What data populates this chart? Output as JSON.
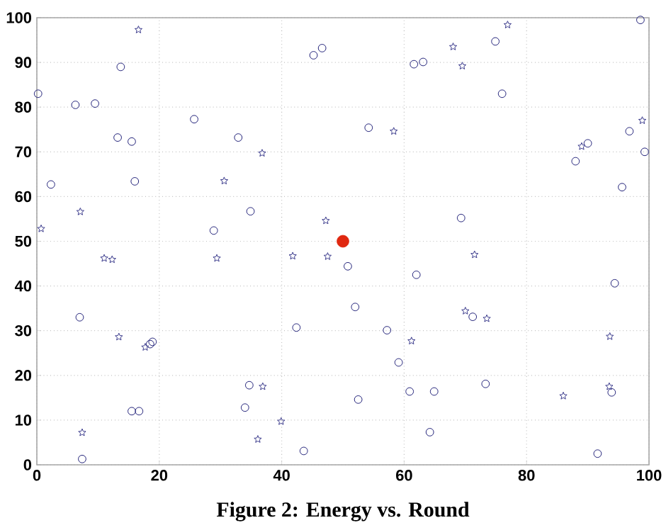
{
  "chart_data": {
    "type": "scatter",
    "title": "Figure 2: Energy vs. Round",
    "xlim": [
      0,
      100
    ],
    "ylim": [
      0,
      100
    ],
    "xticks": [
      0,
      20,
      40,
      60,
      80,
      100
    ],
    "yticks": [
      0,
      10,
      20,
      30,
      40,
      50,
      60,
      70,
      80,
      90,
      100
    ],
    "grid": true,
    "series": [
      {
        "color": "#24247a",
        "marker": "circle",
        "x": [
          0.2,
          2.3,
          6.3,
          9.5,
          13.7,
          13.2,
          15.5,
          16,
          7,
          7.4,
          15.5,
          16.7,
          18.5,
          18.9,
          25.7,
          28.9,
          32.9,
          34.9,
          34,
          34.7,
          42.4,
          43.6,
          45.2,
          46.6,
          61.6,
          63.1,
          74.9,
          76,
          98.6,
          54.2,
          90,
          88,
          96.8,
          99.3,
          95.6,
          69.3,
          50.8,
          62,
          94.4,
          52,
          71.2,
          57.2,
          59.1,
          73.3,
          60.9,
          64.9,
          93.9,
          52.5,
          64.2,
          91.6
        ],
        "values": [
          83,
          62.7,
          80.5,
          80.8,
          89,
          73.2,
          72.3,
          63.4,
          33,
          1.3,
          12,
          12,
          27,
          27.5,
          77.3,
          52.4,
          73.2,
          56.7,
          12.8,
          17.8,
          30.7,
          3.1,
          91.6,
          93.2,
          89.6,
          90.1,
          94.7,
          83,
          99.5,
          75.4,
          71.9,
          67.9,
          74.6,
          70,
          62.1,
          55.2,
          44.4,
          42.5,
          40.6,
          35.3,
          33.1,
          30.1,
          22.9,
          18.1,
          16.4,
          16.4,
          16.2,
          14.6,
          7.3,
          2.5
        ]
      },
      {
        "color": "#3a3a8c",
        "marker": "star",
        "x": [
          0.7,
          16.6,
          7.1,
          30.6,
          36.8,
          47.2,
          76.9,
          68,
          69.5,
          58.3,
          89,
          98.9,
          11,
          12.3,
          29.4,
          41.8,
          47.5,
          13.4,
          17.7,
          7.4,
          36.9,
          36.1,
          39.9,
          71.5,
          70,
          73.5,
          61.2,
          93.6,
          86,
          93.5
        ],
        "values": [
          52.8,
          97.3,
          56.6,
          63.5,
          69.7,
          54.6,
          98.4,
          93.5,
          89.2,
          74.6,
          71.2,
          77,
          46.2,
          45.9,
          46.2,
          46.7,
          46.6,
          28.6,
          26.3,
          7.2,
          17.5,
          5.7,
          9.7,
          47,
          34.4,
          32.7,
          27.7,
          28.7,
          15.4,
          17.5
        ]
      },
      {
        "type": "bubble",
        "color": "#e02810",
        "x": [
          50
        ],
        "values": [
          50
        ],
        "sizes": [
          1
        ]
      }
    ]
  }
}
